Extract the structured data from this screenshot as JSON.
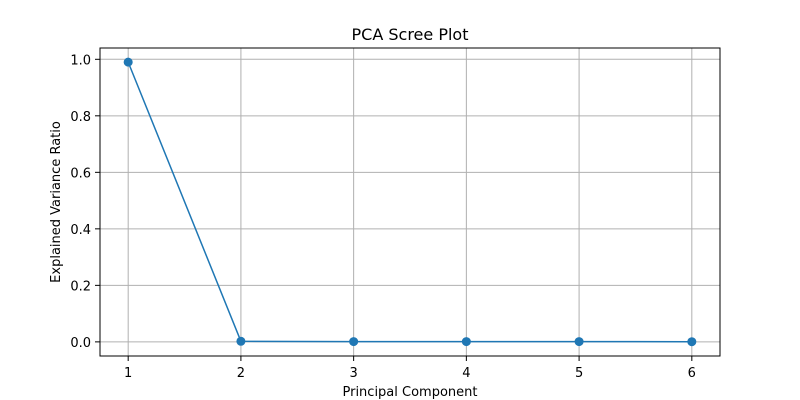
{
  "chart_data": {
    "type": "line",
    "title": "PCA Scree Plot",
    "xlabel": "Principal Component",
    "ylabel": "Explained Variance Ratio",
    "x": [
      1,
      2,
      3,
      4,
      5,
      6
    ],
    "series": [
      {
        "values": [
          0.99,
          0.002,
          0.001,
          0.001,
          0.001,
          0.0005
        ],
        "color": "#1f77b4",
        "marker": "circle"
      }
    ],
    "xlim": [
      0.75,
      6.25
    ],
    "ylim": [
      -0.05,
      1.04
    ],
    "xticks": [
      "1",
      "2",
      "3",
      "4",
      "5",
      "6"
    ],
    "yticks": [
      "0.0",
      "0.2",
      "0.4",
      "0.6",
      "0.8",
      "1.0"
    ],
    "grid": true,
    "colors": {
      "line": "#1f77b4",
      "grid": "#b0b0b0",
      "axes": "#000000"
    }
  }
}
